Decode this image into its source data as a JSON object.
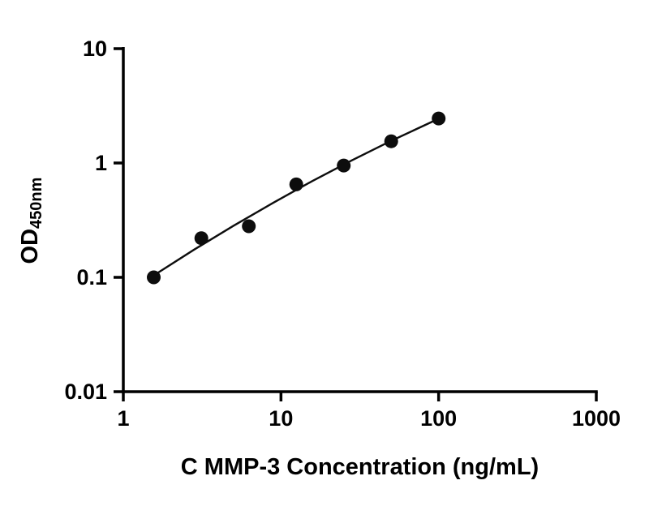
{
  "chart_data": {
    "type": "scatter",
    "title": "",
    "xlabel": "C MMP-3 Concentration (ng/mL)",
    "ylabel": "OD",
    "ylabel_sub": "450nm",
    "xscale": "log",
    "yscale": "log",
    "xlim": [
      1,
      1000
    ],
    "ylim": [
      0.01,
      10
    ],
    "x_ticks": [
      1,
      10,
      100,
      1000
    ],
    "x_tick_labels": [
      "1",
      "10",
      "100",
      "1000"
    ],
    "y_ticks": [
      0.01,
      0.1,
      1,
      10
    ],
    "y_tick_labels": [
      "0.01",
      "0.1",
      "1",
      "10"
    ],
    "grid": false,
    "legend": null,
    "points": [
      {
        "x": 1.56,
        "y": 0.1
      },
      {
        "x": 3.125,
        "y": 0.22
      },
      {
        "x": 6.25,
        "y": 0.28
      },
      {
        "x": 12.5,
        "y": 0.65
      },
      {
        "x": 25,
        "y": 0.95
      },
      {
        "x": 50,
        "y": 1.55
      },
      {
        "x": 100,
        "y": 2.45
      }
    ],
    "fit_line": [
      [
        1.56,
        0.104
      ],
      [
        2.82,
        0.175
      ],
      [
        5.01,
        0.283
      ],
      [
        8.91,
        0.448
      ],
      [
        15.8,
        0.695
      ],
      [
        28.2,
        1.055
      ],
      [
        50.1,
        1.565
      ],
      [
        100,
        2.44
      ]
    ],
    "marker_color": "#0d0d0d",
    "line_color": "#0d0d0d",
    "axis_color": "#000000",
    "background": "#ffffff"
  }
}
